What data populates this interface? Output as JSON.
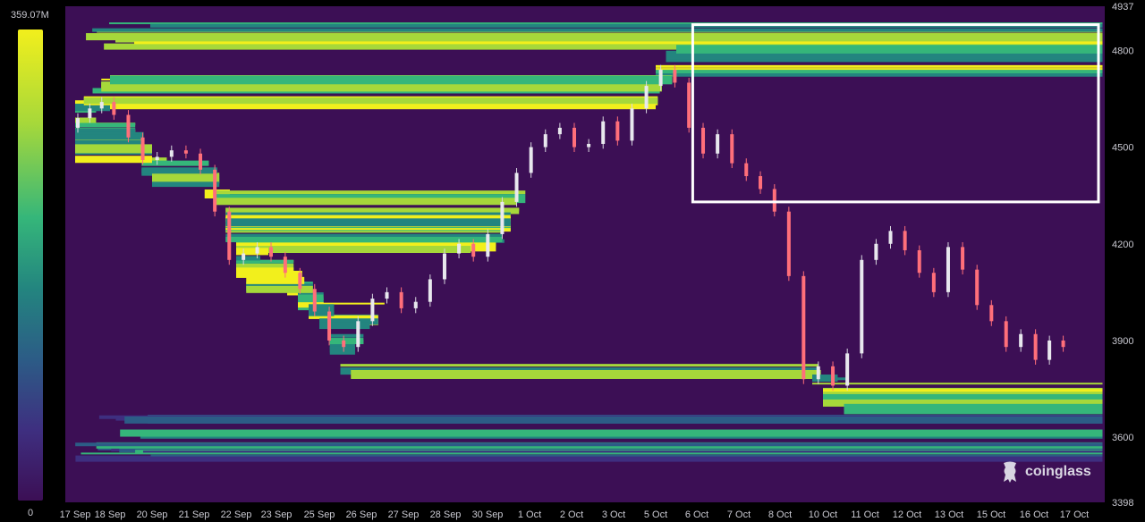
{
  "colorbar": {
    "max_label": "359.07M",
    "min_label": "0",
    "colors": [
      "#3c0f55",
      "#3e2f80",
      "#2c5c86",
      "#23857f",
      "#35b67a",
      "#a6d83a",
      "#f2ef1c"
    ]
  },
  "chart_data": {
    "type": "heatmap",
    "title": "",
    "xlabel": "",
    "ylabel": "",
    "ylim": [
      3398,
      4937
    ],
    "y_ticks": [
      "4937",
      "4800",
      "4500",
      "4200",
      "3900",
      "3600",
      "3398"
    ],
    "x_ticks": [
      "17 Sep",
      "18 Sep",
      "20 Sep",
      "21 Sep",
      "22 Sep",
      "23 Sep",
      "25 Sep",
      "26 Sep",
      "27 Sep",
      "28 Sep",
      "30 Sep",
      "1 Oct",
      "2 Oct",
      "3 Oct",
      "5 Oct",
      "6 Oct",
      "7 Oct",
      "8 Oct",
      "10 Oct",
      "11 Oct",
      "12 Oct",
      "13 Oct",
      "15 Oct",
      "16 Oct",
      "17 Oct"
    ],
    "x_tick_days": [
      0,
      1,
      2,
      3,
      4,
      5,
      6,
      7,
      8,
      9,
      10,
      11,
      12,
      13,
      14,
      15,
      16,
      17,
      18,
      19,
      20,
      21,
      22,
      23,
      24
    ],
    "colorscale_max": "359.07M",
    "price": [
      4560,
      4590,
      4620,
      4640,
      4600,
      4530,
      4460,
      4470,
      4490,
      4480,
      4430,
      4300,
      4150,
      4170,
      4190,
      4160,
      4110,
      4060,
      3990,
      3900,
      3880,
      3960,
      4030,
      4050,
      4000,
      4020,
      4090,
      4170,
      4200,
      4160,
      4230,
      4330,
      4420,
      4500,
      4540,
      4560,
      4500,
      4510,
      4580,
      4520,
      4620,
      4690,
      4740,
      4700,
      4560,
      4480,
      4540,
      4450,
      4410,
      4370,
      4300,
      4100,
      3780,
      3820,
      3760,
      3860,
      4150,
      4200,
      4240,
      4180,
      4110,
      4050,
      4190,
      4120,
      4010,
      3960,
      3880,
      3920,
      3840,
      3900,
      3880
    ]
  },
  "watermark": {
    "text": "coinglass"
  },
  "highlight_box": {
    "x_start_day": 14.9,
    "x_end_day": 24.6,
    "y_low": 4330,
    "y_high": 4880
  }
}
